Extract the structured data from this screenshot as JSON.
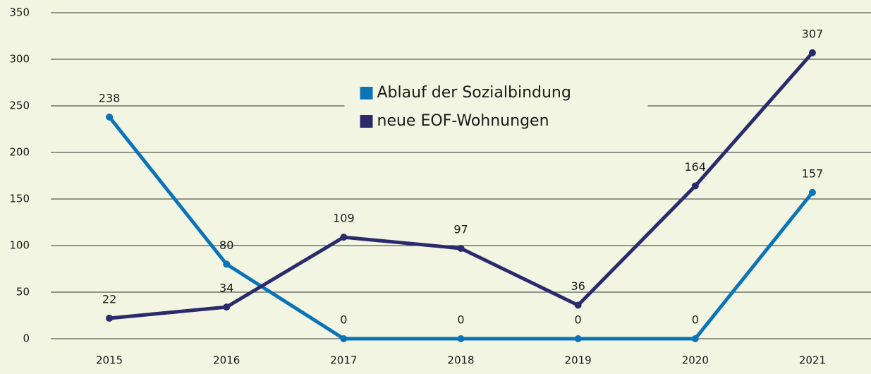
{
  "chart_data": {
    "type": "line",
    "categories": [
      "2015",
      "2016",
      "2017",
      "2018",
      "2019",
      "2020",
      "2021"
    ],
    "series": [
      {
        "name": "Ablauf der Sozialbindung",
        "color": "#0b74b8",
        "values": [
          238,
          80,
          0,
          0,
          0,
          0,
          157
        ]
      },
      {
        "name": "neue EOF-Wohnungen",
        "color": "#2b2a6c",
        "values": [
          22,
          34,
          109,
          97,
          36,
          164,
          307
        ]
      }
    ],
    "ylim": [
      0,
      350
    ],
    "yticks": [
      0,
      50,
      100,
      150,
      200,
      250,
      300,
      350
    ],
    "grid": true,
    "legend": "upper center"
  }
}
